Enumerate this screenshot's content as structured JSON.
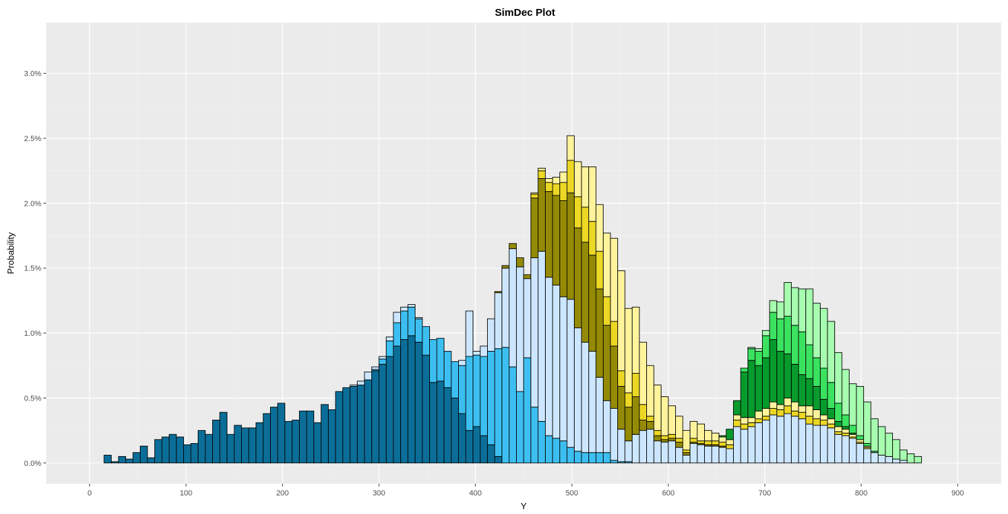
{
  "chart_data": {
    "type": "bar",
    "subtype": "stacked-histogram",
    "title": "SimDec Plot",
    "xlabel": "Y",
    "ylabel": "Probability",
    "xlim": [
      -45,
      945
    ],
    "ylim": [
      -0.0016,
      0.0339
    ],
    "x_ticks": [
      0,
      100,
      200,
      300,
      400,
      500,
      600,
      700,
      800,
      900
    ],
    "x_tick_labels": [
      "0",
      "100",
      "200",
      "300",
      "400",
      "500",
      "600",
      "700",
      "800",
      "900"
    ],
    "y_ticks": [
      0.0,
      0.005,
      0.01,
      0.015,
      0.02,
      0.025,
      0.03
    ],
    "y_tick_labels": [
      "0.0%",
      "0.5%",
      "1.0%",
      "1.5%",
      "2.0%",
      "2.5%",
      "3.0%"
    ],
    "grid": true,
    "legend": "none",
    "background": "#ebebeb",
    "bin_width": 7.5,
    "bin_start": 15,
    "series": [
      {
        "color": "#0b6e99",
        "values": [
          0.0006,
          0.0001,
          0.0005,
          0.0003,
          0.0008,
          0.0013,
          0.0004,
          0.0018,
          0.002,
          0.0022,
          0.002,
          0.0014,
          0.0015,
          0.0025,
          0.0022,
          0.0033,
          0.0039,
          0.0022,
          0.0029,
          0.0027,
          0.0027,
          0.0031,
          0.0038,
          0.0043,
          0.0046,
          0.0032,
          0.0033,
          0.004,
          0.004,
          0.0031,
          0.0045,
          0.0041,
          0.0055,
          0.0058,
          0.0059,
          0.006,
          0.0064,
          0.0071,
          0.0076,
          0.0082,
          0.009,
          0.0095,
          0.0098,
          0.0093,
          0.0083,
          0.0062,
          0.0063,
          0.0058,
          0.005,
          0.0038,
          0.0025,
          0.0028,
          0.0021,
          0.0014,
          0.0005,
          0,
          0,
          0,
          0,
          0,
          0,
          0,
          0,
          0,
          0,
          0,
          0,
          0,
          0,
          0,
          0,
          0,
          0,
          0,
          0,
          0,
          0,
          0,
          0,
          0,
          0,
          0,
          0,
          0,
          0,
          0,
          0,
          0,
          0,
          0,
          0,
          0,
          0,
          0,
          0,
          0,
          0,
          0,
          0,
          0,
          0,
          0,
          0,
          0,
          0,
          0,
          0,
          0,
          0,
          0,
          0,
          0,
          0,
          0,
          0
        ]
      },
      {
        "color": "#3cbff0",
        "values": [
          0,
          0,
          0,
          0,
          0,
          0,
          0,
          0,
          0,
          0,
          0,
          0,
          0,
          0,
          0,
          0,
          0,
          0,
          0,
          0,
          0,
          0,
          0,
          0,
          0,
          0,
          0,
          0,
          0,
          0,
          0,
          0,
          0,
          0,
          0,
          0,
          0,
          0.0001,
          0.0004,
          0.0012,
          0.0018,
          0.0022,
          0.0022,
          0.0018,
          0.0022,
          0.0033,
          0.0033,
          0.0028,
          0.0028,
          0.0037,
          0.0057,
          0.0055,
          0.0061,
          0.0072,
          0.0083,
          0.0089,
          0.0074,
          0.0055,
          0.0081,
          0.0043,
          0.0032,
          0.0021,
          0.0019,
          0.0017,
          0.0012,
          0.0009,
          0.0008,
          0.0008,
          0.0008,
          0.0008,
          0.0002,
          0.0001,
          0.0001,
          0,
          0,
          0,
          0,
          0,
          0,
          0,
          0,
          0,
          0,
          0,
          0,
          0,
          0,
          0,
          0,
          0,
          0,
          0,
          0,
          0,
          0,
          0,
          0,
          0,
          0,
          0,
          0,
          0,
          0,
          0,
          0,
          0,
          0,
          0,
          0,
          0,
          0,
          0,
          0,
          0,
          0,
          0,
          0
        ]
      },
      {
        "color": "#cce6ff",
        "values": [
          0,
          0,
          0,
          0,
          0,
          0,
          0,
          0,
          0,
          0,
          0,
          0,
          0,
          0,
          0,
          0,
          0,
          0,
          0,
          0,
          0,
          0,
          0,
          0,
          0,
          0,
          0,
          0,
          0,
          0,
          0,
          0,
          0,
          0,
          0.0001,
          0.0003,
          0.0006,
          0.0002,
          0.0002,
          0.0003,
          0.0008,
          0.0003,
          0.0002,
          0.0001,
          0,
          0,
          0,
          0,
          0,
          0.0004,
          0.0035,
          0.0003,
          0.0008,
          0.0025,
          0.0043,
          0.0061,
          0.0091,
          0.0096,
          0.0061,
          0.0115,
          0.0131,
          0.0122,
          0.0118,
          0.0111,
          0.0114,
          0.0095,
          0.0085,
          0.0078,
          0.0058,
          0.004,
          0.004,
          0.0025,
          0.0016,
          0.0022,
          0.0025,
          0.0026,
          0.0017,
          0.0016,
          0.0017,
          0.0012,
          0.0006,
          0.0015,
          0.0014,
          0.0013,
          0.0013,
          0.0012,
          0.0011,
          0.0028,
          0.0026,
          0.0028,
          0.0031,
          0.0033,
          0.0037,
          0.0036,
          0.0038,
          0.0036,
          0.0034,
          0.003,
          0.0029,
          0.0029,
          0.0027,
          0.0022,
          0.0021,
          0.0019,
          0.0015,
          0.0011,
          0.0008,
          0.0006,
          0.0005,
          0.0003,
          0.0002,
          0,
          0,
          0,
          0
        ]
      },
      {
        "color": "#948a05",
        "values": [
          0,
          0,
          0,
          0,
          0,
          0,
          0,
          0,
          0,
          0,
          0,
          0,
          0,
          0,
          0,
          0,
          0,
          0,
          0,
          0,
          0,
          0,
          0,
          0,
          0,
          0,
          0,
          0,
          0,
          0,
          0,
          0,
          0,
          0,
          0,
          0,
          0,
          0,
          0,
          0,
          0,
          0,
          0,
          0,
          0,
          0,
          0,
          0,
          0,
          0,
          0,
          0,
          0,
          0,
          0.0001,
          0.0002,
          0.0004,
          0.0007,
          0.0003,
          0.0046,
          0.0056,
          0.0066,
          0.0069,
          0.0074,
          0.0082,
          0.0077,
          0.0077,
          0.0074,
          0.0068,
          0.0058,
          0.0048,
          0.0033,
          0.0026,
          0.0029,
          0.0008,
          0.0006,
          0.0004,
          0.0002,
          0.0002,
          0.0004,
          0.0002,
          0.0001,
          0.0001,
          0.0001,
          0.0001,
          0.0001,
          0,
          0,
          0,
          0,
          0,
          0,
          0,
          0,
          0,
          0,
          0,
          0,
          0,
          0,
          0,
          0,
          0,
          0,
          0,
          0,
          0,
          0,
          0,
          0,
          0,
          0,
          0,
          0,
          0
        ]
      },
      {
        "color": "#ecd724",
        "values": [
          0,
          0,
          0,
          0,
          0,
          0,
          0,
          0,
          0,
          0,
          0,
          0,
          0,
          0,
          0,
          0,
          0,
          0,
          0,
          0,
          0,
          0,
          0,
          0,
          0,
          0,
          0,
          0,
          0,
          0,
          0,
          0,
          0,
          0,
          0,
          0,
          0,
          0,
          0,
          0,
          0,
          0,
          0,
          0,
          0,
          0,
          0,
          0,
          0,
          0,
          0,
          0,
          0,
          0,
          0,
          0,
          0,
          0,
          0,
          0.0003,
          0.0006,
          0.0007,
          0.0009,
          0.0014,
          0.0025,
          0.0024,
          0.0027,
          0.0026,
          0.0029,
          0.0022,
          0.0019,
          0.0012,
          0.0011,
          0.0018,
          0.0012,
          0.0004,
          0.0004,
          0.0003,
          0.0003,
          0.0003,
          0.0002,
          0.0003,
          0.0002,
          0.0003,
          0.0003,
          0.0003,
          0.0003,
          0.0005,
          0.0004,
          0.0003,
          0.0003,
          0.0003,
          0.0005,
          0.0005,
          0.0006,
          0.0004,
          0.0005,
          0.0006,
          0.0005,
          0.0004,
          0.0003,
          0.0002,
          0.0002,
          0.0001,
          0.0001,
          0.0001,
          0,
          0,
          0,
          0,
          0,
          0,
          0,
          0,
          0
        ]
      },
      {
        "color": "#fff39c",
        "values": [
          0,
          0,
          0,
          0,
          0,
          0,
          0,
          0,
          0,
          0,
          0,
          0,
          0,
          0,
          0,
          0,
          0,
          0,
          0,
          0,
          0,
          0,
          0,
          0,
          0,
          0,
          0,
          0,
          0,
          0,
          0,
          0,
          0,
          0,
          0,
          0,
          0,
          0,
          0,
          0,
          0,
          0,
          0,
          0,
          0,
          0,
          0,
          0,
          0,
          0,
          0,
          0,
          0,
          0,
          0,
          0,
          0,
          0,
          0,
          0.0001,
          0.0002,
          0.0003,
          0.0005,
          0.0008,
          0.0019,
          0.0027,
          0.0031,
          0.0042,
          0.0036,
          0.0049,
          0.0064,
          0.0077,
          0.0065,
          0.0051,
          0.0048,
          0.0039,
          0.0035,
          0.003,
          0.0022,
          0.0017,
          0.0015,
          0.0013,
          0.0013,
          0.0008,
          0.0006,
          0.0004,
          0.0004,
          0.0004,
          0.0005,
          0.0004,
          0.0006,
          0.0006,
          0.0005,
          0.0004,
          0.0006,
          0.0007,
          0.0005,
          0.0008,
          0.0007,
          0.0004,
          0.0004,
          0.0004,
          0.0003,
          0.0002,
          0.0002,
          0.0001,
          0,
          0,
          0,
          0,
          0,
          0,
          0,
          0,
          0
        ]
      },
      {
        "color": "#079a2c",
        "values": [
          0,
          0,
          0,
          0,
          0,
          0,
          0,
          0,
          0,
          0,
          0,
          0,
          0,
          0,
          0,
          0,
          0,
          0,
          0,
          0,
          0,
          0,
          0,
          0,
          0,
          0,
          0,
          0,
          0,
          0,
          0,
          0,
          0,
          0,
          0,
          0,
          0,
          0,
          0,
          0,
          0,
          0,
          0,
          0,
          0,
          0,
          0,
          0,
          0,
          0,
          0,
          0,
          0,
          0,
          0,
          0,
          0,
          0,
          0,
          0,
          0,
          0,
          0,
          0,
          0,
          0,
          0,
          0,
          0,
          0,
          0,
          0,
          0,
          0,
          0,
          0,
          0,
          0,
          0,
          0,
          0,
          0,
          0,
          0,
          0,
          0.0001,
          0.0008,
          0.0011,
          0.0035,
          0.0044,
          0.0035,
          0.0039,
          0.0048,
          0.0041,
          0.0034,
          0.0029,
          0.0024,
          0.0021,
          0.0018,
          0.0012,
          0.0008,
          0.0004,
          0.0002,
          0.0001,
          0,
          0,
          0,
          0,
          0,
          0,
          0,
          0,
          0,
          0,
          0
        ]
      },
      {
        "color": "#3be25f",
        "values": [
          0,
          0,
          0,
          0,
          0,
          0,
          0,
          0,
          0,
          0,
          0,
          0,
          0,
          0,
          0,
          0,
          0,
          0,
          0,
          0,
          0,
          0,
          0,
          0,
          0,
          0,
          0,
          0,
          0,
          0,
          0,
          0,
          0,
          0,
          0,
          0,
          0,
          0,
          0,
          0,
          0,
          0,
          0,
          0,
          0,
          0,
          0,
          0,
          0,
          0,
          0,
          0,
          0,
          0,
          0,
          0,
          0,
          0,
          0,
          0,
          0,
          0,
          0,
          0,
          0,
          0,
          0,
          0,
          0,
          0,
          0,
          0,
          0,
          0,
          0,
          0,
          0,
          0,
          0,
          0,
          0,
          0,
          0,
          0,
          0,
          0,
          0,
          0,
          0.0003,
          0.0009,
          0.0011,
          0.0017,
          0.0021,
          0.0025,
          0.0029,
          0.003,
          0.0033,
          0.0026,
          0.0022,
          0.0024,
          0.002,
          0.0014,
          0.0009,
          0.0006,
          0.0003,
          0.0002,
          0.0001,
          0,
          0,
          0,
          0,
          0,
          0,
          0,
          0
        ]
      },
      {
        "color": "#a6fcaf",
        "values": [
          0,
          0,
          0,
          0,
          0,
          0,
          0,
          0,
          0,
          0,
          0,
          0,
          0,
          0,
          0,
          0,
          0,
          0,
          0,
          0,
          0,
          0,
          0,
          0,
          0,
          0,
          0,
          0,
          0,
          0,
          0,
          0,
          0,
          0,
          0,
          0,
          0,
          0,
          0,
          0,
          0,
          0,
          0,
          0,
          0,
          0,
          0,
          0,
          0,
          0,
          0,
          0,
          0,
          0,
          0,
          0,
          0,
          0,
          0,
          0,
          0,
          0,
          0,
          0,
          0,
          0,
          0,
          0,
          0,
          0,
          0,
          0,
          0,
          0,
          0,
          0,
          0,
          0,
          0,
          0,
          0,
          0,
          0,
          0,
          0,
          0,
          0,
          0,
          0,
          0.0001,
          0.0002,
          0.0004,
          0.0009,
          0.0013,
          0.0026,
          0.0029,
          0.0033,
          0.0043,
          0.0042,
          0.0046,
          0.0047,
          0.0039,
          0.0035,
          0.0032,
          0.0038,
          0.0032,
          0.0025,
          0.0022,
          0.0018,
          0.0015,
          0.0008,
          0.0007,
          0.0005
        ]
      }
    ]
  }
}
